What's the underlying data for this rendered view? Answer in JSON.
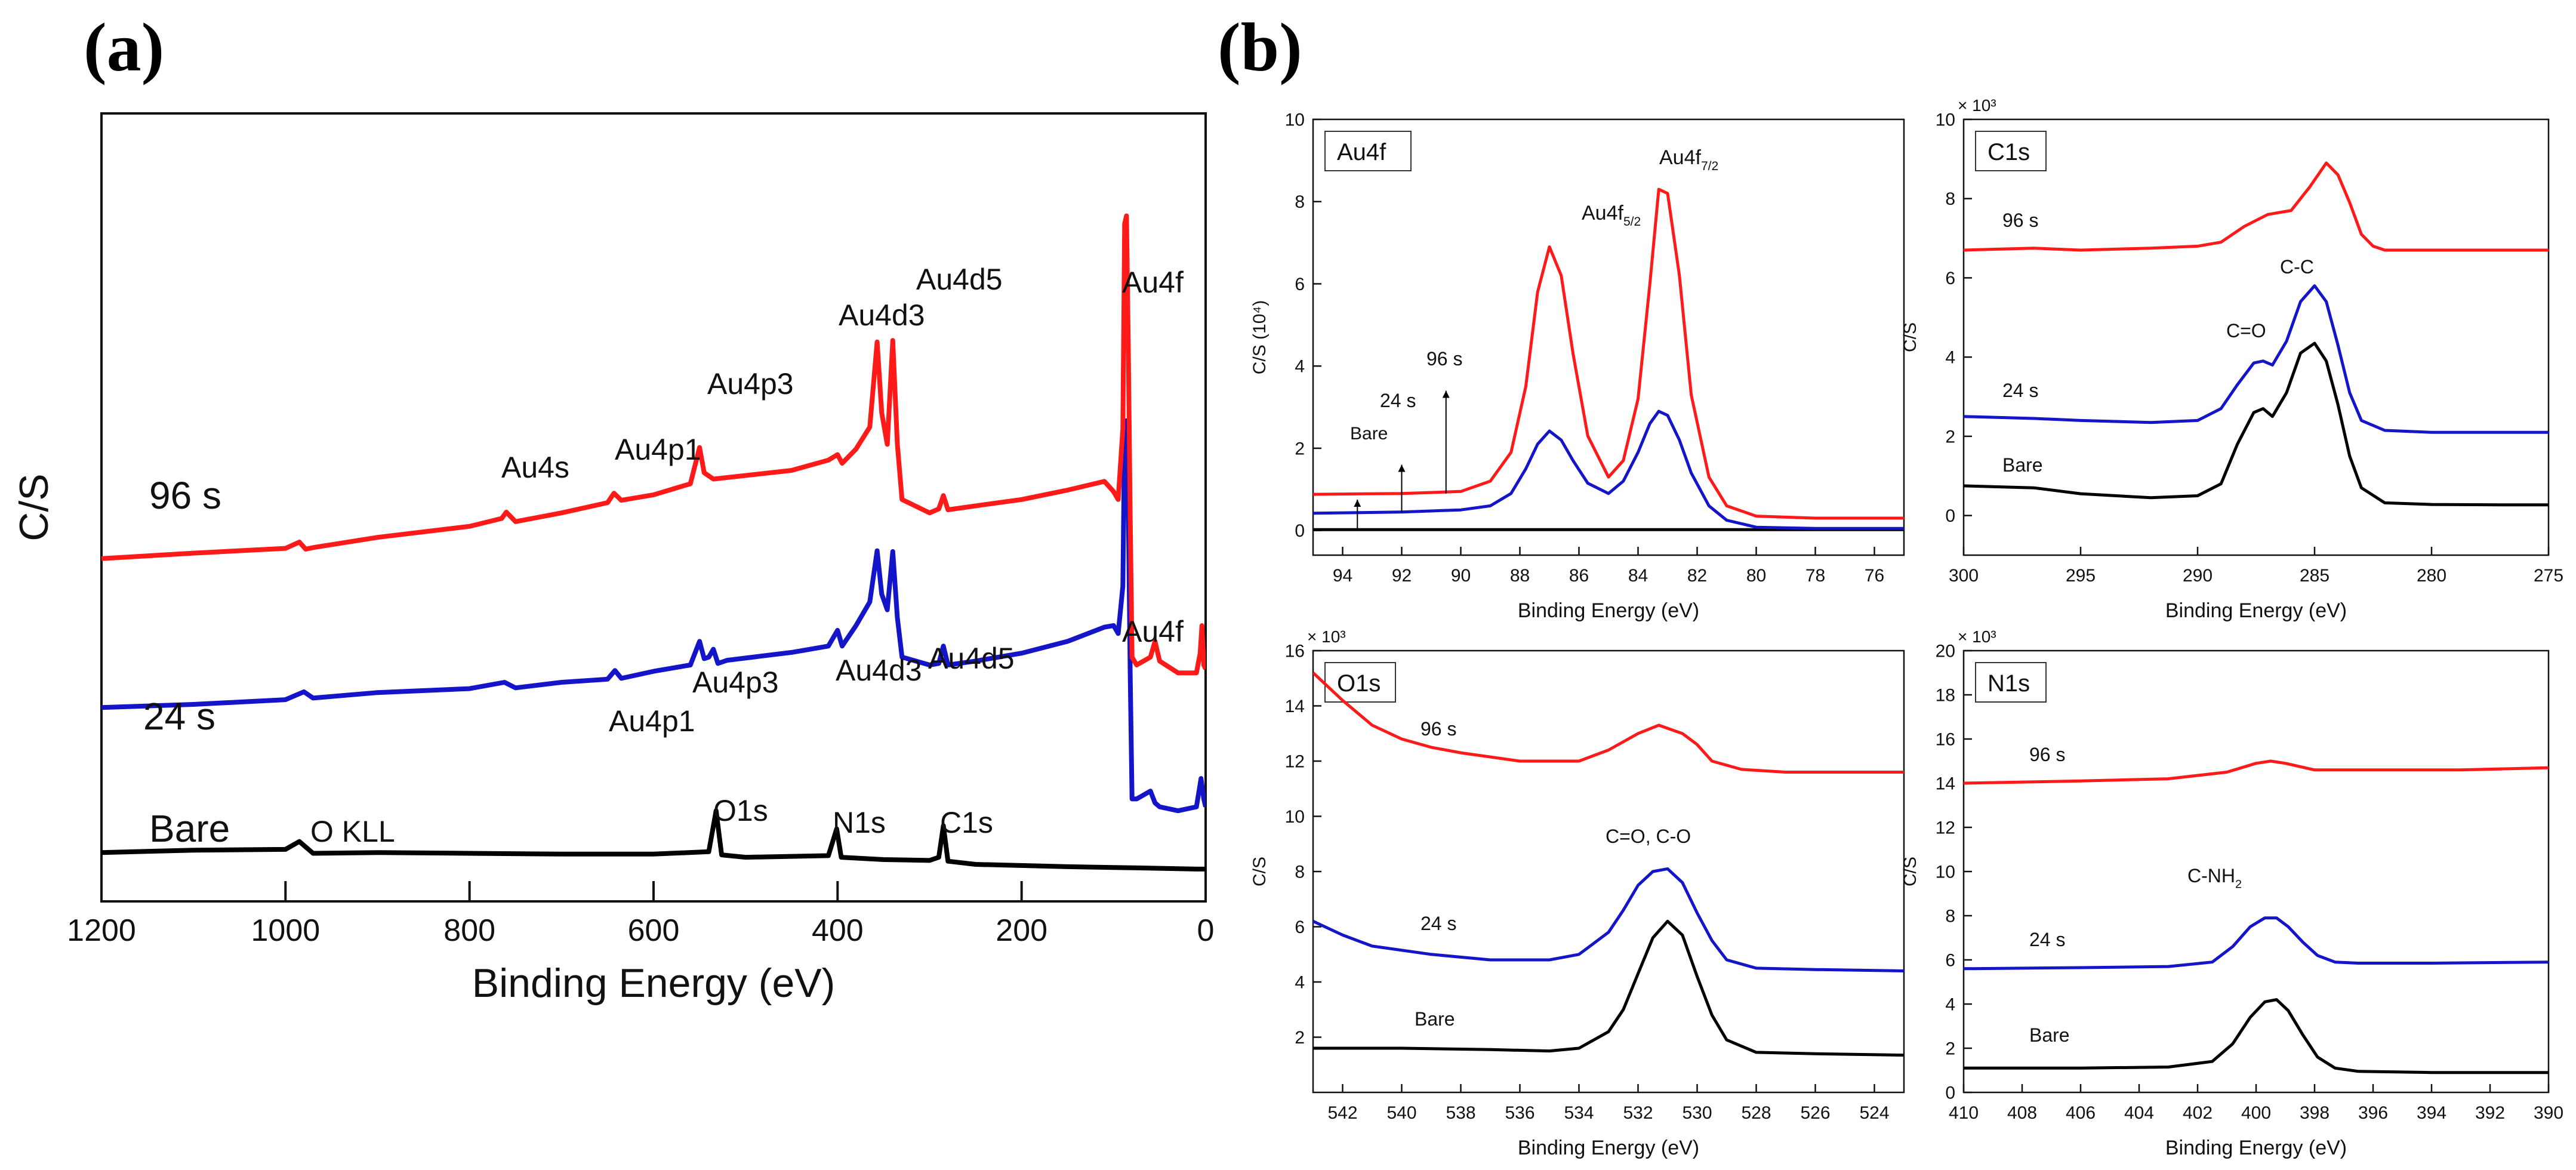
{
  "figure": {
    "panel_a_label": "(a)",
    "panel_b_label": "(b)"
  },
  "colors": {
    "bare": "#000000",
    "s24": "#1414c8",
    "s96": "#ff1a1a"
  },
  "chart_data": [
    {
      "id": "survey",
      "type": "line",
      "title": "",
      "xlabel": "Binding Energy (eV)",
      "ylabel": "C/S",
      "xlim": [
        1200,
        0
      ],
      "xticks": [
        1200,
        1000,
        800,
        600,
        400,
        200,
        0
      ],
      "ylim": [
        0,
        100
      ],
      "yticks_visible": false,
      "series": [
        {
          "name": "Bare",
          "color": "#000000",
          "x": [
            1200,
            1100,
            1000,
            985,
            978,
            970,
            900,
            800,
            700,
            600,
            540,
            532,
            526,
            500,
            410,
            401,
            396,
            350,
            300,
            290,
            285,
            280,
            250,
            150,
            100,
            50,
            10,
            5,
            2,
            0
          ],
          "y": [
            6.2,
            6.5,
            6.6,
            7.6,
            6.9,
            6.1,
            6.2,
            6.1,
            6.0,
            6.0,
            6.3,
            11.5,
            5.9,
            5.6,
            5.8,
            9.2,
            5.6,
            5.3,
            5.2,
            5.6,
            9.6,
            5.1,
            4.7,
            4.4,
            4.3,
            4.2,
            4.1,
            4.1,
            4.1,
            4.1
          ]
        },
        {
          "name": "24 s",
          "color": "#1414c8",
          "x": [
            1200,
            1100,
            1000,
            980,
            970,
            900,
            800,
            762,
            750,
            700,
            650,
            642,
            635,
            600,
            560,
            550,
            545,
            540,
            535,
            530,
            520,
            450,
            410,
            400,
            395,
            380,
            365,
            357,
            352,
            346,
            340,
            335,
            330,
            300,
            290,
            285,
            280,
            250,
            200,
            150,
            110,
            100,
            95,
            90,
            88,
            86,
            84,
            82,
            80,
            75,
            60,
            55,
            50,
            30,
            10,
            5,
            2,
            0
          ],
          "y": [
            24.6,
            25.0,
            25.6,
            26.6,
            25.8,
            26.5,
            27.0,
            27.8,
            27.1,
            27.8,
            28.2,
            29.3,
            28.3,
            29.2,
            30.0,
            33.0,
            30.8,
            31.0,
            32.0,
            30.2,
            30.6,
            31.6,
            32.4,
            34.4,
            32.4,
            35.0,
            38.0,
            44.5,
            39.0,
            37.0,
            44.4,
            36.0,
            31.0,
            30.0,
            30.2,
            32.4,
            30.0,
            30.5,
            31.5,
            33.0,
            34.8,
            35.0,
            34.0,
            40.0,
            60.0,
            61.0,
            50.0,
            29.0,
            13.0,
            13.0,
            14.0,
            12.5,
            12.0,
            11.5,
            12.0,
            15.6,
            13.0,
            12.0
          ]
        },
        {
          "name": "96 s",
          "color": "#ff1a1a",
          "x": [
            1200,
            1100,
            1000,
            985,
            978,
            970,
            900,
            800,
            765,
            760,
            750,
            700,
            650,
            643,
            635,
            600,
            560,
            550,
            545,
            540,
            535,
            450,
            410,
            400,
            395,
            380,
            365,
            357,
            352,
            346,
            340,
            335,
            330,
            300,
            290,
            285,
            280,
            250,
            200,
            150,
            110,
            100,
            95,
            90,
            88,
            86,
            84,
            82,
            80,
            75,
            60,
            55,
            50,
            30,
            10,
            6,
            4,
            2,
            0
          ],
          "y": [
            43.5,
            44.2,
            44.8,
            45.6,
            44.7,
            44.9,
            46.2,
            47.6,
            48.6,
            49.4,
            48.2,
            49.3,
            50.6,
            51.8,
            50.9,
            51.6,
            53.0,
            57.6,
            54.4,
            54.0,
            53.6,
            54.7,
            56.0,
            56.7,
            55.6,
            57.4,
            60.2,
            71.0,
            62.0,
            58.0,
            71.2,
            58.0,
            51.0,
            49.3,
            49.8,
            51.5,
            49.7,
            50.2,
            51.0,
            52.2,
            53.3,
            52.0,
            51.0,
            60.0,
            86.0,
            87.0,
            70.0,
            49.0,
            31.0,
            30.0,
            31.0,
            33.0,
            30.5,
            29.0,
            29.0,
            31.5,
            35.0,
            30.0,
            29.5
          ]
        }
      ],
      "series_labels": [
        "Bare",
        "24 s",
        "96 s"
      ],
      "annotations": [
        "Au4f",
        "Au4d5",
        "Au4d3",
        "Au4p3",
        "Au4p1",
        "Au4s",
        "Au4f",
        "Au4d5",
        "Au4d3",
        "Au4p3",
        "Au4p1",
        "O KLL",
        "O1s",
        "N1s",
        "C1s"
      ]
    },
    {
      "id": "au4f",
      "type": "line",
      "title": "Au4f",
      "xlabel": "Binding Energy (eV)",
      "ylabel": "C/S (10⁴)",
      "xlim": [
        95,
        75
      ],
      "xticks": [
        94,
        92,
        90,
        88,
        86,
        84,
        82,
        80,
        78,
        76
      ],
      "ylim": [
        -0.6,
        10
      ],
      "yticks": [
        0,
        2,
        4,
        6,
        8,
        10
      ],
      "series": [
        {
          "name": "Bare",
          "color": "#000000",
          "x": [
            95,
            75
          ],
          "y": [
            0.02,
            0.02
          ]
        },
        {
          "name": "24 s",
          "color": "#1414c8",
          "x": [
            95,
            92,
            90,
            89,
            88.3,
            87.8,
            87.4,
            87.0,
            86.6,
            86.2,
            85.7,
            85.0,
            84.5,
            84.0,
            83.6,
            83.3,
            83.0,
            82.6,
            82.2,
            81.6,
            81.0,
            80.0,
            78.0,
            75.0
          ],
          "y": [
            0.42,
            0.45,
            0.5,
            0.6,
            0.9,
            1.5,
            2.1,
            2.42,
            2.2,
            1.7,
            1.15,
            0.9,
            1.2,
            1.9,
            2.6,
            2.9,
            2.8,
            2.2,
            1.4,
            0.6,
            0.25,
            0.08,
            0.05,
            0.05
          ]
        },
        {
          "name": "96 s",
          "color": "#ff1a1a",
          "x": [
            95,
            92,
            90,
            89,
            88.3,
            87.8,
            87.4,
            87.0,
            86.6,
            86.2,
            85.7,
            85.0,
            84.5,
            84.0,
            83.6,
            83.3,
            83.0,
            82.6,
            82.2,
            81.6,
            81.0,
            80.0,
            78.0,
            75.0
          ],
          "y": [
            0.88,
            0.9,
            0.95,
            1.2,
            1.9,
            3.5,
            5.8,
            6.9,
            6.2,
            4.3,
            2.3,
            1.3,
            1.7,
            3.2,
            6.0,
            8.3,
            8.2,
            6.2,
            3.3,
            1.3,
            0.6,
            0.35,
            0.3,
            0.3
          ]
        }
      ],
      "annotations": [
        "Au4f5/2",
        "Au4f7/2",
        "Bare",
        "24 s",
        "96 s"
      ]
    },
    {
      "id": "c1s",
      "type": "line",
      "title": "C1s",
      "xlabel": "Binding Energy (eV)",
      "ylabel": "C/S",
      "yunit": "× 10³",
      "xlim": [
        300,
        275
      ],
      "xticks": [
        300,
        295,
        290,
        285,
        280,
        275
      ],
      "ylim": [
        -1,
        10
      ],
      "yticks": [
        0,
        2,
        4,
        6,
        8,
        10
      ],
      "series": [
        {
          "name": "Bare",
          "color": "#000000",
          "x": [
            300,
            297,
            295,
            292,
            290,
            289,
            288.3,
            287.6,
            287.2,
            286.8,
            286.2,
            285.6,
            285.0,
            284.5,
            284.0,
            283.5,
            283.0,
            282.0,
            280.0,
            277.0,
            275.0
          ],
          "y": [
            0.75,
            0.7,
            0.55,
            0.45,
            0.5,
            0.8,
            1.8,
            2.6,
            2.7,
            2.5,
            3.1,
            4.1,
            4.35,
            3.9,
            2.8,
            1.5,
            0.7,
            0.32,
            0.28,
            0.27,
            0.27
          ]
        },
        {
          "name": "24 s",
          "color": "#1414c8",
          "x": [
            300,
            297,
            295,
            292,
            290,
            289,
            288.3,
            287.6,
            287.2,
            286.8,
            286.2,
            285.6,
            285.0,
            284.5,
            284.0,
            283.5,
            283.0,
            282.0,
            280.0,
            277.0,
            275.0
          ],
          "y": [
            2.5,
            2.45,
            2.4,
            2.35,
            2.4,
            2.7,
            3.3,
            3.85,
            3.9,
            3.8,
            4.4,
            5.4,
            5.8,
            5.4,
            4.3,
            3.1,
            2.4,
            2.15,
            2.1,
            2.1,
            2.1
          ]
        },
        {
          "name": "96 s",
          "color": "#ff1a1a",
          "x": [
            300,
            297,
            295,
            292,
            290,
            289,
            288.0,
            287.0,
            286.0,
            285.2,
            284.5,
            284.0,
            283.5,
            283.0,
            282.5,
            282.0,
            280.0,
            277.0,
            275.0
          ],
          "y": [
            6.7,
            6.75,
            6.7,
            6.75,
            6.8,
            6.9,
            7.3,
            7.6,
            7.7,
            8.3,
            8.9,
            8.6,
            7.9,
            7.1,
            6.8,
            6.7,
            6.7,
            6.7,
            6.7
          ]
        }
      ],
      "annotations": [
        "C-C",
        "C=O",
        "Bare",
        "24 s",
        "96 s"
      ]
    },
    {
      "id": "o1s",
      "type": "line",
      "title": "O1s",
      "xlabel": "Binding Energy (eV)",
      "ylabel": "C/S",
      "yunit": "× 10³",
      "xlim": [
        543,
        523
      ],
      "xticks": [
        542,
        540,
        538,
        536,
        534,
        532,
        530,
        528,
        526,
        524
      ],
      "ylim": [
        0,
        16
      ],
      "yticks": [
        2,
        4,
        6,
        8,
        10,
        12,
        14,
        16
      ],
      "series": [
        {
          "name": "Bare",
          "color": "#000000",
          "x": [
            543,
            540,
            537,
            535,
            534,
            533,
            532.5,
            532,
            531.5,
            531.0,
            530.5,
            530.0,
            529.5,
            529,
            528,
            526,
            523
          ],
          "y": [
            1.6,
            1.6,
            1.55,
            1.5,
            1.6,
            2.2,
            3.0,
            4.3,
            5.6,
            6.2,
            5.7,
            4.2,
            2.8,
            1.9,
            1.45,
            1.4,
            1.35
          ]
        },
        {
          "name": "24 s",
          "color": "#1414c8",
          "x": [
            543,
            542,
            541,
            539,
            537,
            535,
            534,
            533,
            532.5,
            532,
            531.5,
            531.0,
            530.5,
            530.0,
            529.5,
            529,
            528,
            526,
            523
          ],
          "y": [
            6.2,
            5.7,
            5.3,
            5.0,
            4.8,
            4.8,
            5.0,
            5.8,
            6.6,
            7.5,
            8.0,
            8.1,
            7.6,
            6.5,
            5.5,
            4.8,
            4.5,
            4.45,
            4.4
          ]
        },
        {
          "name": "96 s",
          "color": "#ff1a1a",
          "x": [
            543,
            542,
            541,
            540,
            539,
            538,
            536,
            534,
            533,
            532,
            531.3,
            530.5,
            530,
            529.5,
            528.5,
            527,
            525,
            523
          ],
          "y": [
            15.2,
            14.2,
            13.3,
            12.8,
            12.5,
            12.3,
            12.0,
            12.0,
            12.4,
            13.0,
            13.3,
            13.0,
            12.6,
            12.0,
            11.7,
            11.6,
            11.6,
            11.6
          ]
        }
      ],
      "annotations": [
        "C=O, C-O",
        "Bare",
        "24 s",
        "96 s"
      ]
    },
    {
      "id": "n1s",
      "type": "line",
      "title": "N1s",
      "xlabel": "Binding Energy (eV)",
      "ylabel": "C/S",
      "yunit": "× 10³",
      "xlim": [
        410,
        390
      ],
      "xticks": [
        410,
        408,
        406,
        404,
        402,
        400,
        398,
        396,
        394,
        392,
        390
      ],
      "ylim": [
        0,
        20
      ],
      "yticks": [
        0,
        2,
        4,
        6,
        8,
        10,
        12,
        14,
        16,
        18,
        20
      ],
      "series": [
        {
          "name": "Bare",
          "color": "#000000",
          "x": [
            410,
            406,
            403,
            401.5,
            400.8,
            400.2,
            399.7,
            399.3,
            398.9,
            398.4,
            397.9,
            397.3,
            396.5,
            394,
            390
          ],
          "y": [
            1.1,
            1.1,
            1.15,
            1.4,
            2.2,
            3.4,
            4.1,
            4.2,
            3.7,
            2.6,
            1.6,
            1.1,
            0.95,
            0.9,
            0.9
          ]
        },
        {
          "name": "24 s",
          "color": "#1414c8",
          "x": [
            410,
            406,
            403,
            401.5,
            400.8,
            400.2,
            399.7,
            399.3,
            398.9,
            398.4,
            397.9,
            397.3,
            396.5,
            394,
            390
          ],
          "y": [
            5.6,
            5.65,
            5.7,
            5.9,
            6.6,
            7.5,
            7.9,
            7.9,
            7.5,
            6.8,
            6.2,
            5.9,
            5.85,
            5.85,
            5.9
          ]
        },
        {
          "name": "96 s",
          "color": "#ff1a1a",
          "x": [
            410,
            406,
            403,
            401,
            400,
            399.5,
            399,
            398,
            396,
            393,
            390
          ],
          "y": [
            14.0,
            14.1,
            14.2,
            14.5,
            14.9,
            15.0,
            14.9,
            14.6,
            14.6,
            14.6,
            14.7
          ]
        }
      ],
      "annotations": [
        "C-NH2",
        "Bare",
        "24 s",
        "96 s"
      ]
    }
  ]
}
